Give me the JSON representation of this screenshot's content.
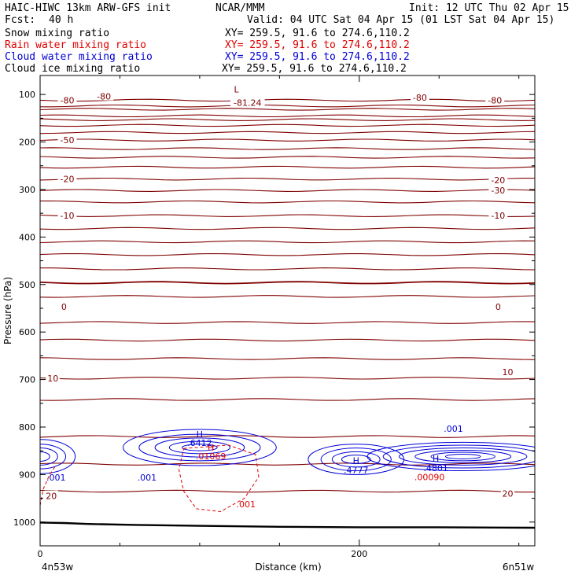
{
  "header": {
    "model": "HAIC-HIWC 13km ARW-GFS init",
    "center": "NCAR/MMM",
    "init": "Init: 12 UTC Thu 02 Apr 15",
    "fcst_label": "Fcst:",
    "fcst_value": "40 h",
    "valid": "Valid: 04 UTC Sat 04 Apr 15 (01 LST Sat 04 Apr 15)"
  },
  "fields": [
    {
      "name": "Snow mixing ratio",
      "xy": "XY= 259.5, 91.6 to 274.6,110.2",
      "color": "#000000"
    },
    {
      "name": "Rain water mixing ratio",
      "xy": "XY= 259.5, 91.6 to 274.6,110.2",
      "color": "#e00000"
    },
    {
      "name": "Cloud water mixing ratio",
      "xy": "XY= 259.5, 91.6 to 274.6,110.2",
      "color": "#0000d8"
    },
    {
      "name": "Cloud ice mixing ratio",
      "xy": "XY= 259.5, 91.6 to 274.6,110.2",
      "color": "#000000"
    }
  ],
  "colors": {
    "temperature": "#800000",
    "cloud_water": "#0000d8",
    "rain_water": "#e00000",
    "terrain": "#000000"
  },
  "chart_data": {
    "type": "line",
    "xlabel": "Distance (km)",
    "ylabel": "Pressure (hPa)",
    "xlim": [
      0,
      310
    ],
    "ylim": [
      1050,
      60
    ],
    "x_ticks": [
      0,
      200
    ],
    "x_minor_ticks": [
      50,
      100,
      150,
      250,
      300
    ],
    "y_ticks": [
      100,
      200,
      300,
      400,
      500,
      600,
      700,
      800,
      900,
      1000
    ],
    "x_endpoints": {
      "left": "4n53w",
      "right": "6n51w"
    },
    "terrain": {
      "x": [
        0,
        15,
        30,
        60,
        100,
        150,
        200,
        250,
        310
      ],
      "p": [
        1001,
        1002,
        1004,
        1006,
        1008,
        1010,
        1011,
        1011,
        1012
      ]
    },
    "isotherm_levels": [
      112,
      124,
      131,
      145,
      153,
      165,
      180,
      196,
      214,
      232,
      253,
      278,
      302,
      326,
      355,
      382,
      410,
      437,
      467,
      496,
      525,
      580,
      617,
      656,
      697,
      742,
      820,
      878,
      935
    ],
    "temperature_labels": [
      {
        "text": "-80",
        "x": 17,
        "p": 112
      },
      {
        "text": "-80",
        "x": 40,
        "p": 104
      },
      {
        "text": "-80",
        "x": 238,
        "p": 106
      },
      {
        "text": "-80",
        "x": 285,
        "p": 112
      },
      {
        "text": "-81.24",
        "x": 130,
        "p": 117
      },
      {
        "text": "-50",
        "x": 17,
        "p": 196
      },
      {
        "text": "-30",
        "x": 287,
        "p": 302
      },
      {
        "text": "-20",
        "x": 17,
        "p": 278
      },
      {
        "text": "-20",
        "x": 287,
        "p": 280
      },
      {
        "text": "-10",
        "x": 17,
        "p": 355
      },
      {
        "text": "-10",
        "x": 287,
        "p": 355
      },
      {
        "text": "0",
        "x": 15,
        "p": 547
      },
      {
        "text": "0",
        "x": 287,
        "p": 547
      },
      {
        "text": "10",
        "x": 8,
        "p": 697
      },
      {
        "text": "10",
        "x": 293,
        "p": 684
      },
      {
        "text": "20",
        "x": 7,
        "p": 945
      },
      {
        "text": "20",
        "x": 293,
        "p": 940
      }
    ],
    "min_marker": {
      "text": "L",
      "x": 123,
      "p": 89
    },
    "cloud_water_maxima": [
      {
        "marker": "H",
        "value": ".6412",
        "x": 100,
        "p": 815,
        "value_p": 833
      },
      {
        "marker": "H",
        "value": ".4777",
        "x": 198,
        "p": 870,
        "value_p": 890
      },
      {
        "marker": "H",
        "value": ".4801",
        "x": 248,
        "p": 866,
        "value_p": 886
      }
    ],
    "cloud_water_labels": [
      {
        "text": ".001",
        "x": 10,
        "p": 906
      },
      {
        "text": ".001",
        "x": 67,
        "p": 906
      },
      {
        "text": ".001",
        "x": 259,
        "p": 803
      }
    ],
    "rain_water_maxima": [
      {
        "marker": "H",
        "value": ".01069",
        "x": 107,
        "p": 861,
        "marker_p": 843
      }
    ],
    "rain_water_labels": [
      {
        "text": ".00090",
        "x": 244,
        "p": 905
      },
      {
        "text": ".001",
        "x": 129,
        "p": 962
      }
    ]
  }
}
